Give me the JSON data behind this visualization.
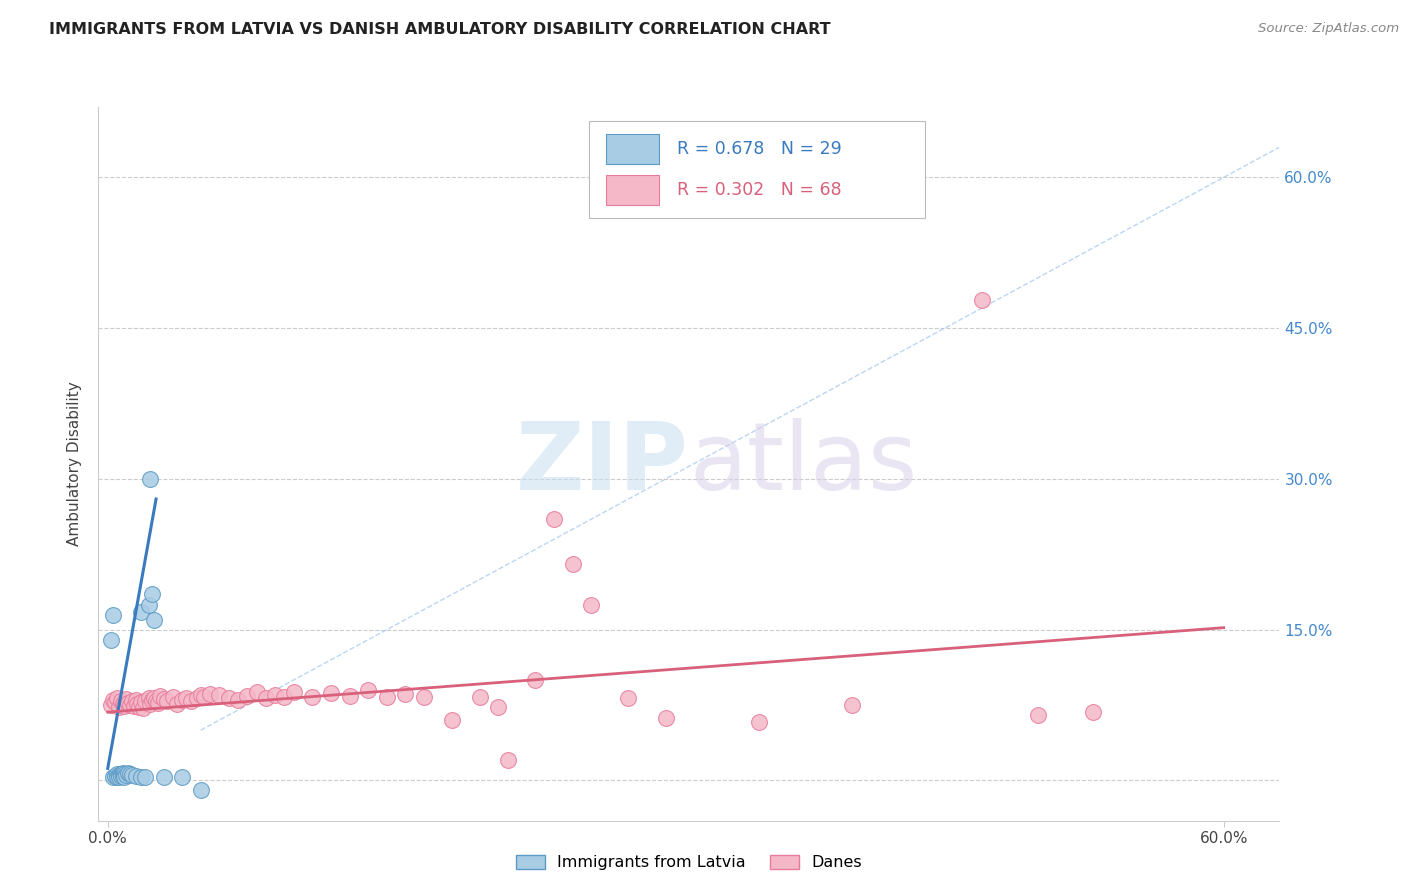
{
  "title": "IMMIGRANTS FROM LATVIA VS DANISH AMBULATORY DISABILITY CORRELATION CHART",
  "source": "Source: ZipAtlas.com",
  "ylabel": "Ambulatory Disability",
  "xlim": [
    -0.005,
    0.63
  ],
  "ylim": [
    -0.04,
    0.67
  ],
  "yticks": [
    0.0,
    0.15,
    0.3,
    0.45,
    0.6
  ],
  "ytick_labels": [
    "",
    "15.0%",
    "30.0%",
    "45.0%",
    "60.0%"
  ],
  "xticks": [
    0.0,
    0.6
  ],
  "xtick_labels": [
    "0.0%",
    "60.0%"
  ],
  "legend_label1": "Immigrants from Latvia",
  "legend_label2": "Danes",
  "color_blue_fill": "#a8cce4",
  "color_pink_fill": "#f4b8c8",
  "color_blue_edge": "#5b9ac4",
  "color_pink_edge": "#e87a9a",
  "color_blue_line": "#3a7bbf",
  "color_pink_line": "#d9607a",
  "color_diag": "#aaccee",
  "watermark_zip": "ZIP",
  "watermark_atlas": "atlas",
  "blue_dots": [
    [
      0.003,
      0.003
    ],
    [
      0.004,
      0.004
    ],
    [
      0.005,
      0.006
    ],
    [
      0.005,
      0.003
    ],
    [
      0.006,
      0.005
    ],
    [
      0.006,
      0.003
    ],
    [
      0.007,
      0.006
    ],
    [
      0.007,
      0.004
    ],
    [
      0.008,
      0.007
    ],
    [
      0.008,
      0.004
    ],
    [
      0.009,
      0.006
    ],
    [
      0.009,
      0.003
    ],
    [
      0.01,
      0.005
    ],
    [
      0.011,
      0.007
    ],
    [
      0.012,
      0.006
    ],
    [
      0.013,
      0.005
    ],
    [
      0.015,
      0.004
    ],
    [
      0.018,
      0.003
    ],
    [
      0.02,
      0.003
    ],
    [
      0.03,
      0.003
    ],
    [
      0.04,
      0.003
    ],
    [
      0.05,
      -0.01
    ],
    [
      0.002,
      0.14
    ],
    [
      0.003,
      0.165
    ],
    [
      0.018,
      0.168
    ],
    [
      0.022,
      0.175
    ],
    [
      0.023,
      0.3
    ],
    [
      0.024,
      0.185
    ],
    [
      0.025,
      0.16
    ]
  ],
  "pink_dots": [
    [
      0.002,
      0.075
    ],
    [
      0.003,
      0.08
    ],
    [
      0.004,
      0.078
    ],
    [
      0.005,
      0.082
    ],
    [
      0.006,
      0.073
    ],
    [
      0.007,
      0.079
    ],
    [
      0.008,
      0.076
    ],
    [
      0.009,
      0.074
    ],
    [
      0.01,
      0.081
    ],
    [
      0.011,
      0.077
    ],
    [
      0.012,
      0.075
    ],
    [
      0.013,
      0.079
    ],
    [
      0.014,
      0.074
    ],
    [
      0.015,
      0.08
    ],
    [
      0.016,
      0.076
    ],
    [
      0.017,
      0.073
    ],
    [
      0.018,
      0.078
    ],
    [
      0.019,
      0.072
    ],
    [
      0.02,
      0.079
    ],
    [
      0.022,
      0.082
    ],
    [
      0.023,
      0.076
    ],
    [
      0.024,
      0.08
    ],
    [
      0.025,
      0.082
    ],
    [
      0.026,
      0.079
    ],
    [
      0.027,
      0.077
    ],
    [
      0.028,
      0.084
    ],
    [
      0.03,
      0.081
    ],
    [
      0.032,
      0.079
    ],
    [
      0.035,
      0.083
    ],
    [
      0.037,
      0.076
    ],
    [
      0.04,
      0.08
    ],
    [
      0.042,
      0.082
    ],
    [
      0.045,
      0.079
    ],
    [
      0.048,
      0.082
    ],
    [
      0.05,
      0.085
    ],
    [
      0.052,
      0.083
    ],
    [
      0.055,
      0.086
    ],
    [
      0.06,
      0.085
    ],
    [
      0.065,
      0.082
    ],
    [
      0.07,
      0.08
    ],
    [
      0.075,
      0.084
    ],
    [
      0.08,
      0.088
    ],
    [
      0.085,
      0.082
    ],
    [
      0.09,
      0.085
    ],
    [
      0.095,
      0.083
    ],
    [
      0.1,
      0.088
    ],
    [
      0.11,
      0.083
    ],
    [
      0.12,
      0.087
    ],
    [
      0.13,
      0.084
    ],
    [
      0.14,
      0.09
    ],
    [
      0.15,
      0.083
    ],
    [
      0.16,
      0.086
    ],
    [
      0.17,
      0.083
    ],
    [
      0.185,
      0.06
    ],
    [
      0.2,
      0.083
    ],
    [
      0.21,
      0.073
    ],
    [
      0.215,
      0.02
    ],
    [
      0.23,
      0.1
    ],
    [
      0.24,
      0.26
    ],
    [
      0.25,
      0.215
    ],
    [
      0.26,
      0.175
    ],
    [
      0.28,
      0.082
    ],
    [
      0.3,
      0.062
    ],
    [
      0.35,
      0.058
    ],
    [
      0.4,
      0.075
    ],
    [
      0.47,
      0.478
    ],
    [
      0.5,
      0.065
    ],
    [
      0.53,
      0.068
    ]
  ],
  "blue_line_x": [
    0.0,
    0.026
  ],
  "blue_line_y": [
    0.012,
    0.28
  ],
  "pink_line_x": [
    0.0,
    0.6
  ],
  "pink_line_y": [
    0.068,
    0.152
  ],
  "diag_line_x": [
    0.05,
    0.63
  ],
  "diag_line_y": [
    0.05,
    0.63
  ]
}
